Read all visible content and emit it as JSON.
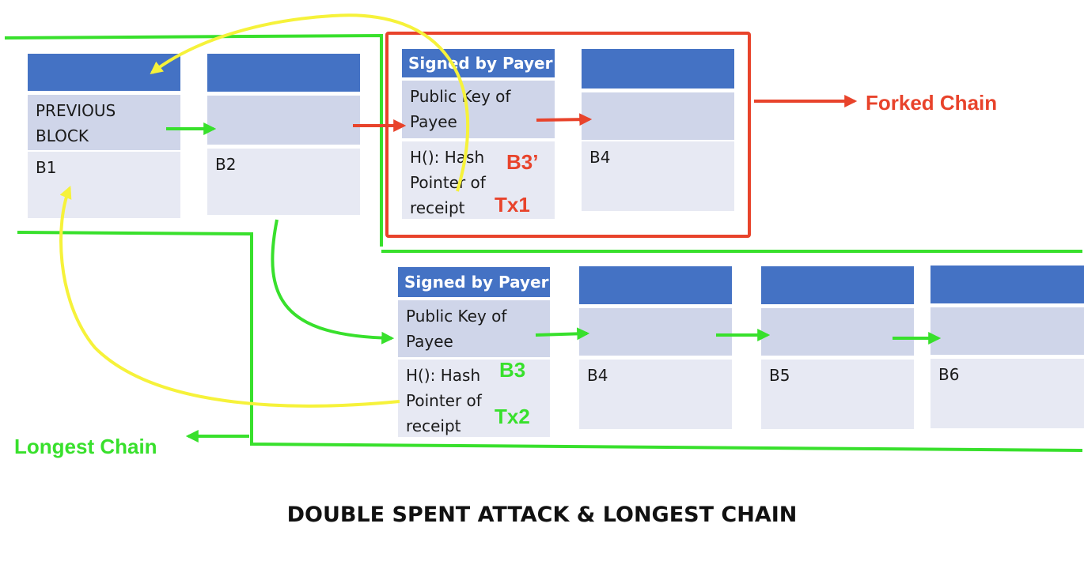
{
  "title": "DOUBLE SPENT ATTACK & LONGEST CHAIN",
  "legend": {
    "forked": "Forked Chain",
    "longest": "Longest Chain"
  },
  "top_chain": {
    "b1": {
      "mid_line1": "PREVIOUS",
      "mid_line2": "BLOCK",
      "label": "B1"
    },
    "b2": {
      "label": "B2"
    },
    "b3p": {
      "header": "Signed by Payer",
      "mid_line1": "Public Key of",
      "mid_line2": "Payee",
      "bot_line1": "H(): Hash",
      "bot_line2": "Pointer of",
      "bot_line3": "receipt",
      "tag": "B3’",
      "tx": "Tx1"
    },
    "b4": {
      "label": "B4"
    }
  },
  "bottom_chain": {
    "b3": {
      "header": "Signed by Payer",
      "mid_line1": "Public Key of",
      "mid_line2": "Payee",
      "bot_line1": "H(): Hash",
      "bot_line2": "Pointer of",
      "bot_line3": "receipt",
      "tag": "B3",
      "tx": "Tx2"
    },
    "b4": {
      "label": "B4"
    },
    "b5": {
      "label": "B5"
    },
    "b6": {
      "label": "B6"
    }
  },
  "colors": {
    "header": "#4472c4",
    "middle": "#cfd5e9",
    "bottom": "#e7e9f3",
    "green": "#38e02c",
    "red": "#e8432b",
    "yellow": "#f6f23a"
  }
}
